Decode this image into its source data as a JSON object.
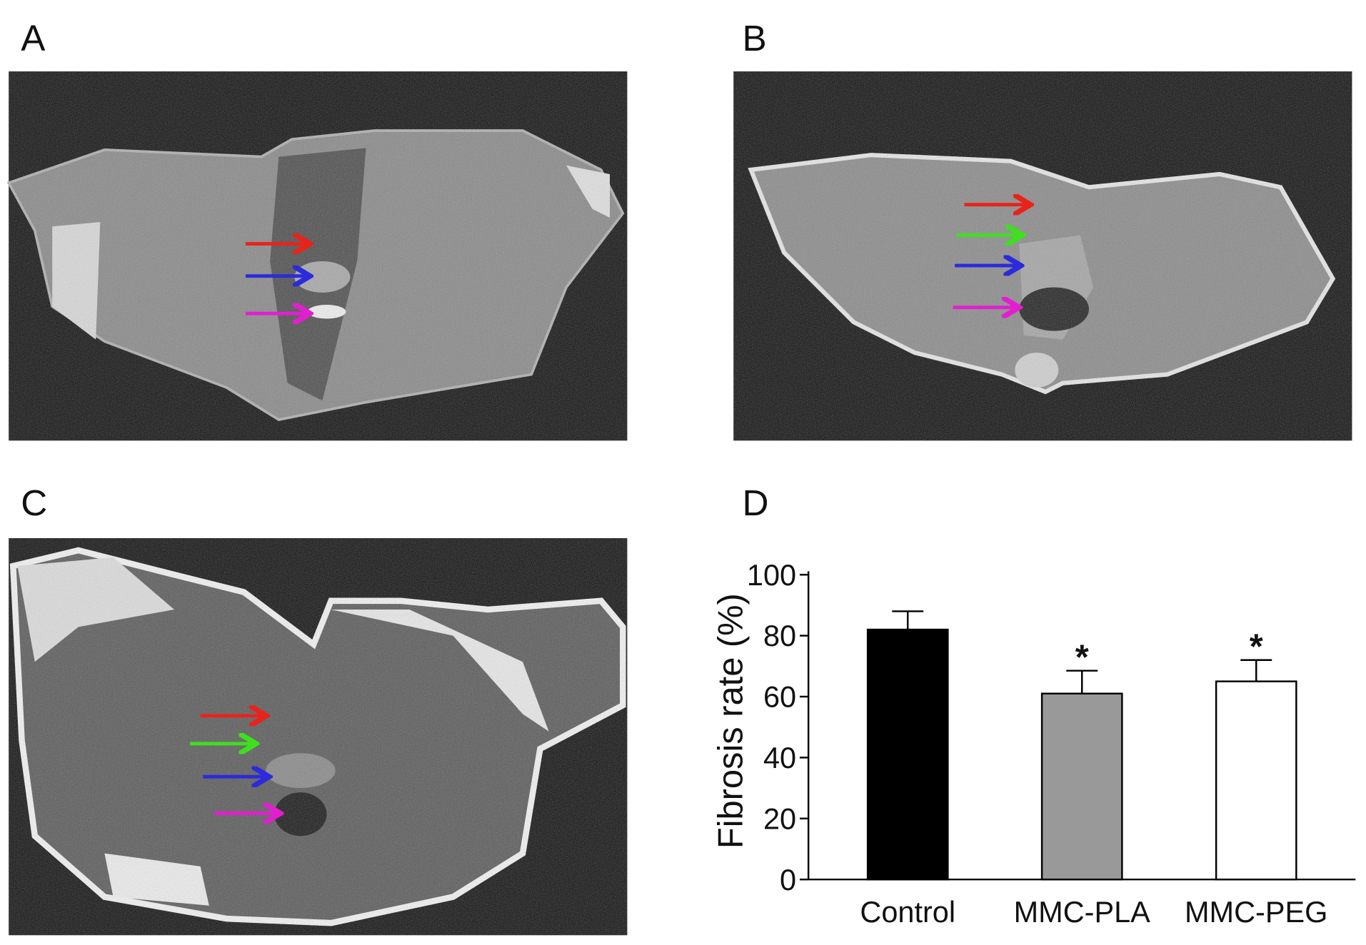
{
  "panel_labels": [
    "A",
    "B",
    "C",
    "D"
  ],
  "chart_data": {
    "type": "bar",
    "y_label": "Fibrosis rate (%)",
    "categories": [
      "Control",
      "MMC-PLA",
      "MMC-PEG"
    ],
    "values": [
      82,
      61,
      65
    ],
    "errors": [
      6,
      7.5,
      7
    ],
    "colors": [
      "#000000",
      "#999999",
      "#ffffff"
    ],
    "annotations": [
      null,
      "*",
      "*"
    ],
    "ylim": [
      0,
      100
    ],
    "yticks": [
      0,
      20,
      40,
      60,
      80,
      100
    ],
    "grid": false
  }
}
